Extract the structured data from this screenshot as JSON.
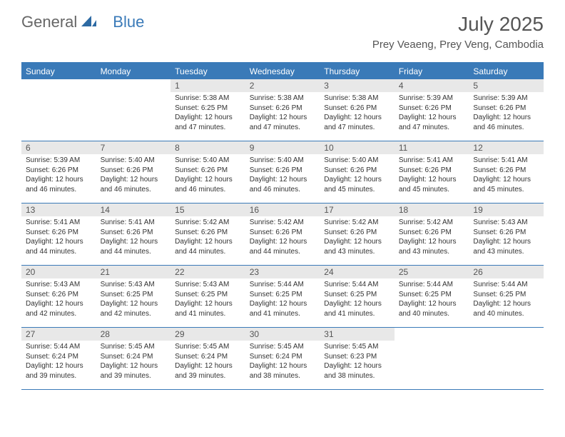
{
  "branding": {
    "logo_general": "General",
    "logo_blue": "Blue",
    "logo_icon_color": "#2d6aa3"
  },
  "header": {
    "month_title": "July 2025",
    "location": "Prey Veaeng, Prey Veng, Cambodia"
  },
  "colors": {
    "accent": "#3a7ab8",
    "day_num_bg": "#e8e8e8",
    "text": "#333333",
    "header_text": "#555555",
    "white": "#ffffff"
  },
  "day_labels": [
    "Sunday",
    "Monday",
    "Tuesday",
    "Wednesday",
    "Thursday",
    "Friday",
    "Saturday"
  ],
  "weeks": [
    [
      {
        "empty": true
      },
      {
        "empty": true
      },
      {
        "num": "1",
        "sunrise": "Sunrise: 5:38 AM",
        "sunset": "Sunset: 6:25 PM",
        "daylight": "Daylight: 12 hours and 47 minutes."
      },
      {
        "num": "2",
        "sunrise": "Sunrise: 5:38 AM",
        "sunset": "Sunset: 6:26 PM",
        "daylight": "Daylight: 12 hours and 47 minutes."
      },
      {
        "num": "3",
        "sunrise": "Sunrise: 5:38 AM",
        "sunset": "Sunset: 6:26 PM",
        "daylight": "Daylight: 12 hours and 47 minutes."
      },
      {
        "num": "4",
        "sunrise": "Sunrise: 5:39 AM",
        "sunset": "Sunset: 6:26 PM",
        "daylight": "Daylight: 12 hours and 47 minutes."
      },
      {
        "num": "5",
        "sunrise": "Sunrise: 5:39 AM",
        "sunset": "Sunset: 6:26 PM",
        "daylight": "Daylight: 12 hours and 46 minutes."
      }
    ],
    [
      {
        "num": "6",
        "sunrise": "Sunrise: 5:39 AM",
        "sunset": "Sunset: 6:26 PM",
        "daylight": "Daylight: 12 hours and 46 minutes."
      },
      {
        "num": "7",
        "sunrise": "Sunrise: 5:40 AM",
        "sunset": "Sunset: 6:26 PM",
        "daylight": "Daylight: 12 hours and 46 minutes."
      },
      {
        "num": "8",
        "sunrise": "Sunrise: 5:40 AM",
        "sunset": "Sunset: 6:26 PM",
        "daylight": "Daylight: 12 hours and 46 minutes."
      },
      {
        "num": "9",
        "sunrise": "Sunrise: 5:40 AM",
        "sunset": "Sunset: 6:26 PM",
        "daylight": "Daylight: 12 hours and 46 minutes."
      },
      {
        "num": "10",
        "sunrise": "Sunrise: 5:40 AM",
        "sunset": "Sunset: 6:26 PM",
        "daylight": "Daylight: 12 hours and 45 minutes."
      },
      {
        "num": "11",
        "sunrise": "Sunrise: 5:41 AM",
        "sunset": "Sunset: 6:26 PM",
        "daylight": "Daylight: 12 hours and 45 minutes."
      },
      {
        "num": "12",
        "sunrise": "Sunrise: 5:41 AM",
        "sunset": "Sunset: 6:26 PM",
        "daylight": "Daylight: 12 hours and 45 minutes."
      }
    ],
    [
      {
        "num": "13",
        "sunrise": "Sunrise: 5:41 AM",
        "sunset": "Sunset: 6:26 PM",
        "daylight": "Daylight: 12 hours and 44 minutes."
      },
      {
        "num": "14",
        "sunrise": "Sunrise: 5:41 AM",
        "sunset": "Sunset: 6:26 PM",
        "daylight": "Daylight: 12 hours and 44 minutes."
      },
      {
        "num": "15",
        "sunrise": "Sunrise: 5:42 AM",
        "sunset": "Sunset: 6:26 PM",
        "daylight": "Daylight: 12 hours and 44 minutes."
      },
      {
        "num": "16",
        "sunrise": "Sunrise: 5:42 AM",
        "sunset": "Sunset: 6:26 PM",
        "daylight": "Daylight: 12 hours and 44 minutes."
      },
      {
        "num": "17",
        "sunrise": "Sunrise: 5:42 AM",
        "sunset": "Sunset: 6:26 PM",
        "daylight": "Daylight: 12 hours and 43 minutes."
      },
      {
        "num": "18",
        "sunrise": "Sunrise: 5:42 AM",
        "sunset": "Sunset: 6:26 PM",
        "daylight": "Daylight: 12 hours and 43 minutes."
      },
      {
        "num": "19",
        "sunrise": "Sunrise: 5:43 AM",
        "sunset": "Sunset: 6:26 PM",
        "daylight": "Daylight: 12 hours and 43 minutes."
      }
    ],
    [
      {
        "num": "20",
        "sunrise": "Sunrise: 5:43 AM",
        "sunset": "Sunset: 6:26 PM",
        "daylight": "Daylight: 12 hours and 42 minutes."
      },
      {
        "num": "21",
        "sunrise": "Sunrise: 5:43 AM",
        "sunset": "Sunset: 6:25 PM",
        "daylight": "Daylight: 12 hours and 42 minutes."
      },
      {
        "num": "22",
        "sunrise": "Sunrise: 5:43 AM",
        "sunset": "Sunset: 6:25 PM",
        "daylight": "Daylight: 12 hours and 41 minutes."
      },
      {
        "num": "23",
        "sunrise": "Sunrise: 5:44 AM",
        "sunset": "Sunset: 6:25 PM",
        "daylight": "Daylight: 12 hours and 41 minutes."
      },
      {
        "num": "24",
        "sunrise": "Sunrise: 5:44 AM",
        "sunset": "Sunset: 6:25 PM",
        "daylight": "Daylight: 12 hours and 41 minutes."
      },
      {
        "num": "25",
        "sunrise": "Sunrise: 5:44 AM",
        "sunset": "Sunset: 6:25 PM",
        "daylight": "Daylight: 12 hours and 40 minutes."
      },
      {
        "num": "26",
        "sunrise": "Sunrise: 5:44 AM",
        "sunset": "Sunset: 6:25 PM",
        "daylight": "Daylight: 12 hours and 40 minutes."
      }
    ],
    [
      {
        "num": "27",
        "sunrise": "Sunrise: 5:44 AM",
        "sunset": "Sunset: 6:24 PM",
        "daylight": "Daylight: 12 hours and 39 minutes."
      },
      {
        "num": "28",
        "sunrise": "Sunrise: 5:45 AM",
        "sunset": "Sunset: 6:24 PM",
        "daylight": "Daylight: 12 hours and 39 minutes."
      },
      {
        "num": "29",
        "sunrise": "Sunrise: 5:45 AM",
        "sunset": "Sunset: 6:24 PM",
        "daylight": "Daylight: 12 hours and 39 minutes."
      },
      {
        "num": "30",
        "sunrise": "Sunrise: 5:45 AM",
        "sunset": "Sunset: 6:24 PM",
        "daylight": "Daylight: 12 hours and 38 minutes."
      },
      {
        "num": "31",
        "sunrise": "Sunrise: 5:45 AM",
        "sunset": "Sunset: 6:23 PM",
        "daylight": "Daylight: 12 hours and 38 minutes."
      },
      {
        "empty": true
      },
      {
        "empty": true
      }
    ]
  ]
}
